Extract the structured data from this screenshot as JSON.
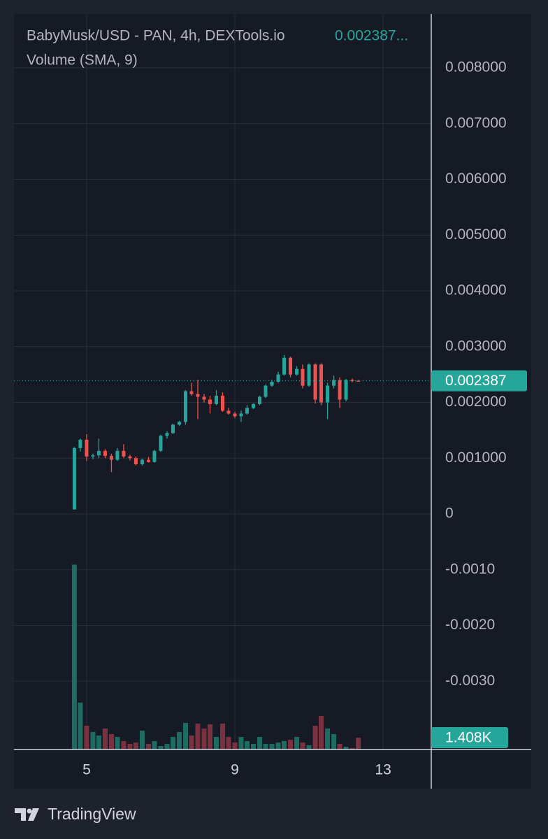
{
  "chart_data": {
    "type": "candlestick",
    "title": "BabyMusk/USD - PAN, 4h, DEXTools.io",
    "title_value": "0.002387...",
    "subtitle": "Volume (SMA, 9)",
    "brand": "TradingView",
    "x": [
      4.67,
      4.83,
      5,
      5.17,
      5.33,
      5.5,
      5.67,
      5.83,
      6,
      6.17,
      6.33,
      6.5,
      6.67,
      6.83,
      7,
      7.17,
      7.33,
      7.5,
      7.67,
      7.83,
      8,
      8.17,
      8.33,
      8.5,
      8.67,
      8.83,
      9,
      9.17,
      9.33,
      9.5,
      9.67,
      9.83,
      10,
      10.17,
      10.33,
      10.5,
      10.67,
      10.83,
      11,
      11.17,
      11.33,
      11.5,
      11.67,
      11.83,
      12,
      12.17,
      12.33
    ],
    "open": [
      8e-05,
      0.00118,
      0.00133,
      0.00103,
      0.00105,
      0.00113,
      0.00104,
      0.00097,
      0.00113,
      0.00103,
      0.001,
      0.00089,
      0.00097,
      0.00093,
      0.00113,
      0.0014,
      0.00145,
      0.0016,
      0.00165,
      0.0022,
      0.00215,
      0.0021,
      0.00205,
      0.00197,
      0.00212,
      0.00185,
      0.0018,
      0.00175,
      0.0018,
      0.0019,
      0.00197,
      0.0021,
      0.0023,
      0.00237,
      0.0025,
      0.0028,
      0.0025,
      0.0026,
      0.0023,
      0.00268,
      0.00268,
      0.002,
      0.0023,
      0.0024,
      0.00205,
      0.0024,
      0.00239
    ],
    "high": [
      0.0012,
      0.00135,
      0.00143,
      0.00108,
      0.00135,
      0.00116,
      0.00108,
      0.00118,
      0.00125,
      0.00106,
      0.00103,
      0.00099,
      0.00102,
      0.00115,
      0.00142,
      0.00148,
      0.00162,
      0.00167,
      0.00222,
      0.00235,
      0.0024,
      0.00215,
      0.00212,
      0.00222,
      0.00218,
      0.0019,
      0.00183,
      0.00185,
      0.00195,
      0.00198,
      0.00212,
      0.00232,
      0.0024,
      0.00255,
      0.00285,
      0.00282,
      0.00265,
      0.00268,
      0.0027,
      0.0027,
      0.0027,
      0.00235,
      0.00248,
      0.00245,
      0.00242,
      0.00243,
      0.0024
    ],
    "low": [
      8e-05,
      0.00112,
      0.00095,
      0.00098,
      0.001,
      0.001,
      0.00075,
      0.00095,
      0.001,
      0.00096,
      0.00087,
      0.00087,
      0.00092,
      0.00092,
      0.00111,
      0.00135,
      0.00143,
      0.00158,
      0.0016,
      0.00212,
      0.0017,
      0.002,
      0.0018,
      0.00195,
      0.00183,
      0.00178,
      0.00172,
      0.00165,
      0.00178,
      0.00188,
      0.00195,
      0.00208,
      0.00228,
      0.00235,
      0.00248,
      0.00245,
      0.00248,
      0.00225,
      0.00228,
      0.00198,
      0.00195,
      0.0017,
      0.00225,
      0.0019,
      0.00202,
      0.00236,
      0.00237
    ],
    "close": [
      0.00118,
      0.00133,
      0.00103,
      0.00105,
      0.00113,
      0.00104,
      0.00097,
      0.00113,
      0.00103,
      0.001,
      0.00089,
      0.00097,
      0.00093,
      0.00113,
      0.0014,
      0.00145,
      0.0016,
      0.00165,
      0.0022,
      0.00215,
      0.0021,
      0.00205,
      0.00197,
      0.00212,
      0.00185,
      0.0018,
      0.00175,
      0.0018,
      0.0019,
      0.00197,
      0.0021,
      0.0023,
      0.00237,
      0.0025,
      0.0028,
      0.0025,
      0.0026,
      0.0023,
      0.00268,
      0.00205,
      0.002,
      0.0023,
      0.0024,
      0.00205,
      0.0024,
      0.00239,
      0.002387
    ],
    "volume": {
      "name": "Volume",
      "axis": "y2",
      "values": [
        21900,
        5560,
        2820,
        2080,
        1660,
        2490,
        1830,
        1490,
        1000,
        660,
        830,
        2240,
        660,
        1000,
        415,
        660,
        1490,
        2080,
        3150,
        1660,
        3070,
        2490,
        2990,
        1490,
        3070,
        1490,
        830,
        1490,
        1000,
        660,
        1490,
        660,
        660,
        830,
        1000,
        1160,
        1490,
        830,
        500,
        2820,
        3980,
        2490,
        1830,
        660,
        330,
        170,
        1408
      ]
    },
    "last_price": 0.002387,
    "last_volume": {
      "value": 1408,
      "label": "1.408K"
    },
    "up_color": "#26a69a",
    "down_color": "#ef5350",
    "volume_up_color": "#1e6b62",
    "volume_down_color": "#7c3140",
    "xlim": [
      3.04,
      14.3
    ],
    "xticks": [
      5,
      9,
      13
    ],
    "ylim": [
      -0.004226,
      0.008966
    ],
    "yticks": [
      {
        "value": 0.008,
        "label": "0.008000"
      },
      {
        "value": 0.007,
        "label": "0.007000"
      },
      {
        "value": 0.006,
        "label": "0.006000"
      },
      {
        "value": 0.005,
        "label": "0.005000"
      },
      {
        "value": 0.004,
        "label": "0.004000"
      },
      {
        "value": 0.003,
        "label": "0.003000"
      },
      {
        "value": 0.002,
        "label": "0.002000"
      },
      {
        "value": 0.001,
        "label": "0.001000"
      },
      0,
      {
        "value": -0.001,
        "label": "-0.0010"
      },
      {
        "value": -0.002,
        "label": "-0.0020"
      },
      {
        "value": -0.003,
        "label": "-0.0030"
      }
    ],
    "y2lim": [
      0,
      87100
    ],
    "grid": true
  }
}
